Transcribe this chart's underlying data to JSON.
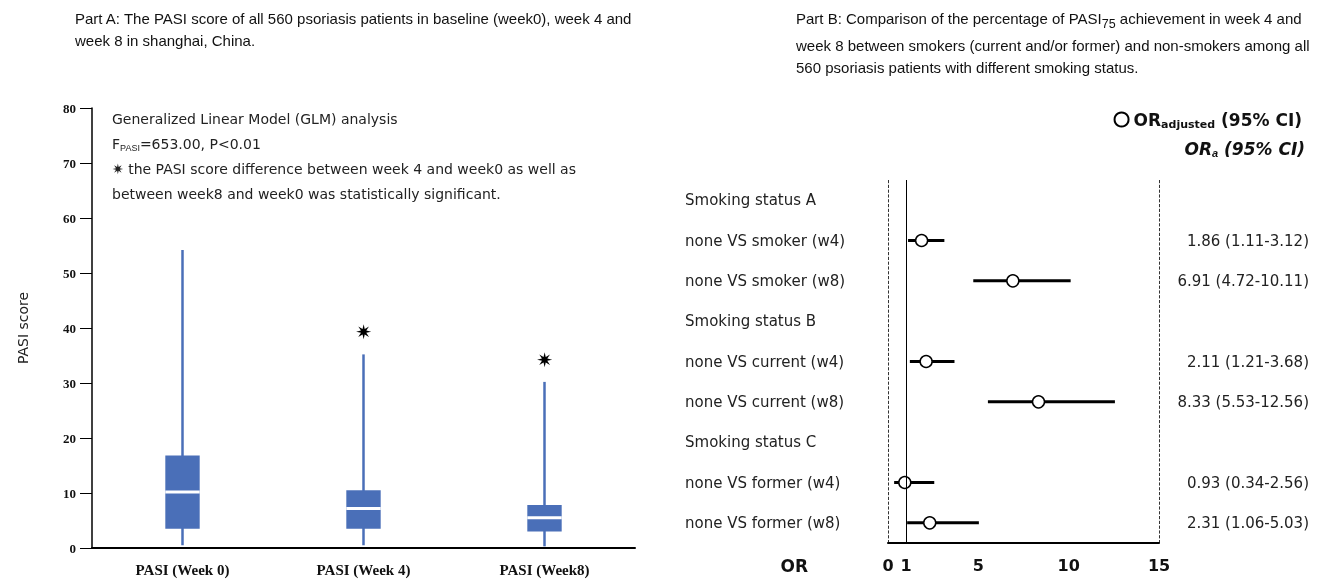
{
  "chart_data": [
    {
      "type": "box",
      "title": "Part A: The PASI score of all 560 psoriasis patients in baseline (week0), week 4 and week 8 in shanghai, China.",
      "ylabel": "PASI score",
      "annotations": [
        "Generalized Linear Model (GLM) analysis",
        "F$_{PASI}$=653.00, P<0.01",
        "✷ the PASI score difference between week 4 and week0 as well as",
        "between week8 and week0 was statistically significant.",
        {
          "text": "✷",
          "x": "PASI (Week 4)",
          "y": 35.2
        },
        {
          "text": "✷",
          "x": "PASI (Week8)",
          "y": 30.2
        }
      ],
      "categories": [
        "PASI (Week 0)",
        "PASI (Week 4)",
        "PASI (Week8)"
      ],
      "color": "#4a6fb8",
      "boxes": [
        {
          "low": 0.5,
          "q1": 3.5,
          "median": 10.2,
          "q3": 16.8,
          "high": 54.2
        },
        {
          "low": 0.5,
          "q1": 3.5,
          "median": 7.2,
          "q3": 10.5,
          "high": 35.2
        },
        {
          "low": 0.3,
          "q1": 3.0,
          "median": 5.5,
          "q3": 7.8,
          "high": 30.2
        }
      ],
      "ylim": [
        0,
        80
      ],
      "yticks": [
        0,
        10,
        20,
        30,
        40,
        50,
        60,
        70,
        80
      ]
    },
    {
      "type": "scatter",
      "title": "Part B: Comparison of the percentage of PASI$_{75}$ achievement in week 4 and week 8 between smokers (current and/or former) and non-smokers among all 560 psoriasis patients with different smoking status.",
      "xlabel": "OR",
      "annotations": [
        "OR$_{a}$ (95% CI)"
      ],
      "orientation": "horizontal",
      "legend": "top right",
      "marker": "circle",
      "categories": [
        "Smoking status A",
        "none VS smoker (w4)",
        "none VS smoker (w8)",
        "Smoking status B",
        "none VS current (w4)",
        "none VS current (w8)",
        "Smoking status C",
        "none VS former (w4)",
        "none VS former (w8)"
      ],
      "series": [
        {
          "name": "OR$_{adjusted}$ (95% CI)",
          "color": "#000000",
          "values": [
            null,
            1.86,
            6.91,
            null,
            2.11,
            8.33,
            null,
            0.93,
            2.31
          ],
          "errors": [
            null,
            [
              1.11,
              3.12
            ],
            [
              4.72,
              10.11
            ],
            null,
            [
              1.21,
              3.68
            ],
            [
              5.53,
              12.56
            ],
            null,
            [
              0.34,
              2.56
            ],
            [
              1.06,
              5.03
            ]
          ],
          "value_labels": [
            null,
            "1.86 (1.11-3.12)",
            "6.91 (4.72-10.11)",
            null,
            "2.11 (1.21-3.68)",
            "8.33 (5.53-12.56)",
            null,
            "0.93 (0.34-2.56)",
            "2.31 (1.06-5.03)"
          ]
        }
      ],
      "xlim": [
        0,
        15
      ],
      "xticks": [
        0,
        1,
        5,
        10,
        15
      ],
      "ref_lines": [
        {
          "axis": "x",
          "value": 0,
          "line_style": "dashed"
        },
        {
          "axis": "x",
          "value": 1,
          "line_style": "solid"
        },
        {
          "axis": "x",
          "value": 15,
          "line_style": "dashed"
        }
      ]
    }
  ]
}
